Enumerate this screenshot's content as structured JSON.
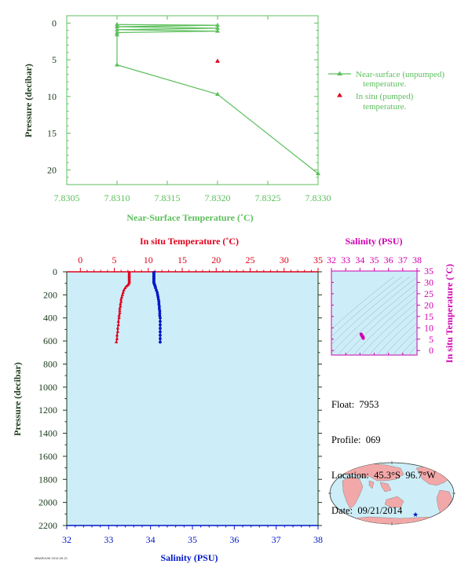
{
  "colors": {
    "near_surface": "#5cbf5c",
    "in_situ_temp": "#e0001b",
    "salinity": "#0018c8",
    "ts_magenta": "#d000b0",
    "axis_dark": "#1a3a1a",
    "plot_bg": "#cdeef8",
    "land": "#f2a8a8",
    "ocean": "#cdeef8"
  },
  "info": {
    "float_label": "Float:",
    "float_value": "7953",
    "profile_label": "Profile:",
    "profile_value": "069",
    "location_label": "Location:",
    "location_value": "45.3°S  96.7°W",
    "date_label": "Date:",
    "date_value": "09/21/2014"
  },
  "footer_text": "MBARI/UW 2014-09-21",
  "chart_data": [
    {
      "type": "line",
      "id": "near-surface-chart",
      "xlabel": "Near-Surface Temperature (˚C)",
      "ylabel": "Pressure (decibar)",
      "xlim": [
        7.8305,
        7.833
      ],
      "ylim": [
        22,
        -1
      ],
      "xticks": [
        "7.8305",
        "7.8310",
        "7.8315",
        "7.8320",
        "7.8325",
        "7.8330"
      ],
      "yticks": [
        "0",
        "5",
        "10",
        "15",
        "20"
      ],
      "series": [
        {
          "name": "Near-surface (unpumped) temperature.",
          "marker": "triangle",
          "x": [
            7.831,
            7.832,
            7.831,
            7.832,
            7.831,
            7.832,
            7.831,
            7.831,
            7.831,
            7.832,
            7.833
          ],
          "y": [
            0.2,
            0.3,
            0.5,
            0.7,
            0.9,
            1.1,
            1.3,
            1.6,
            5.7,
            9.7,
            20.5
          ]
        },
        {
          "name": "In situ (pumped) temperature.",
          "marker": "triangle",
          "x": [
            7.832
          ],
          "y": [
            5.2
          ]
        }
      ]
    },
    {
      "type": "scatter",
      "id": "profile-chart",
      "top_label": "In situ Temperature (˚C)",
      "bottom_label": "Salinity (PSU)",
      "ylabel": "Pressure (decibar)",
      "temp_lim": [
        -2,
        35
      ],
      "sal_lim": [
        32,
        38
      ],
      "ylim": [
        2200,
        0
      ],
      "temp_ticks": [
        "0",
        "5",
        "10",
        "15",
        "20",
        "25",
        "30",
        "35"
      ],
      "sal_ticks": [
        "32",
        "33",
        "34",
        "35",
        "36",
        "37",
        "38"
      ],
      "yticks": [
        "0",
        "200",
        "400",
        "600",
        "800",
        "1000",
        "1200",
        "1400",
        "1600",
        "1800",
        "2000",
        "2200"
      ],
      "temperature": {
        "p": [
          5,
          15,
          25,
          35,
          45,
          55,
          65,
          75,
          85,
          95,
          105,
          115,
          125,
          140,
          160,
          180,
          200,
          220,
          240,
          260,
          280,
          300,
          320,
          340,
          360,
          380,
          400,
          430,
          460,
          490,
          520,
          550,
          580,
          610
        ],
        "t": [
          7.2,
          7.2,
          7.2,
          7.2,
          7.2,
          7.2,
          7.2,
          7.2,
          7.2,
          7.2,
          7.1,
          7.0,
          6.8,
          6.6,
          6.4,
          6.3,
          6.2,
          6.1,
          6.0,
          6.0,
          5.9,
          5.9,
          5.8,
          5.8,
          5.8,
          5.7,
          5.7,
          5.6,
          5.6,
          5.5,
          5.5,
          5.4,
          5.4,
          5.3
        ]
      },
      "salinity": {
        "p": [
          5,
          15,
          25,
          35,
          45,
          55,
          65,
          75,
          85,
          95,
          105,
          115,
          125,
          140,
          160,
          180,
          200,
          220,
          240,
          260,
          280,
          300,
          320,
          340,
          360,
          380,
          400,
          430,
          460,
          490,
          520,
          550,
          580,
          610
        ],
        "s": [
          34.08,
          34.08,
          34.08,
          34.08,
          34.08,
          34.08,
          34.08,
          34.08,
          34.08,
          34.08,
          34.09,
          34.1,
          34.11,
          34.12,
          34.14,
          34.16,
          34.17,
          34.18,
          34.19,
          34.2,
          34.2,
          34.21,
          34.21,
          34.22,
          34.22,
          34.22,
          34.23,
          34.23,
          34.23,
          34.23,
          34.23,
          34.23,
          34.23,
          34.23
        ]
      }
    },
    {
      "type": "scatter",
      "id": "ts-chart",
      "top_label": "Salinity (PSU)",
      "right_label": "In situ Temperature (˚C)",
      "sal_lim": [
        32,
        38
      ],
      "temp_lim": [
        -2,
        35
      ],
      "sal_ticks": [
        "32",
        "33",
        "34",
        "35",
        "36",
        "37",
        "38"
      ],
      "temp_ticks": [
        "0",
        "5",
        "10",
        "15",
        "20",
        "25",
        "30",
        "35"
      ],
      "points": {
        "s": [
          34.08,
          34.1,
          34.12,
          34.14,
          34.16,
          34.18,
          34.2,
          34.21,
          34.22,
          34.23,
          34.23
        ],
        "t": [
          7.2,
          7.0,
          6.7,
          6.5,
          6.3,
          6.1,
          6.0,
          5.9,
          5.8,
          5.6,
          5.4
        ]
      }
    }
  ]
}
